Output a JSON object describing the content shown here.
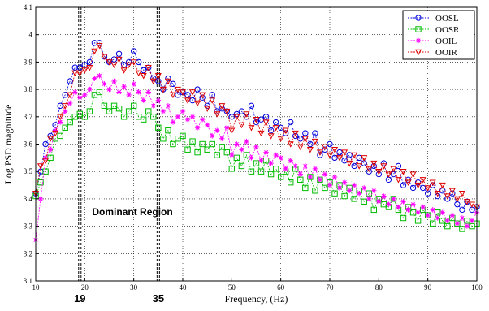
{
  "chart_data": {
    "type": "line",
    "title": "",
    "xlabel": "Frequency, (Hz)",
    "ylabel": "Log PSD magnitude",
    "xlim": [
      10,
      100
    ],
    "ylim": [
      3.1,
      4.1
    ],
    "xticks": [
      10,
      20,
      30,
      40,
      50,
      60,
      70,
      80,
      90,
      100
    ],
    "yticks": [
      3.1,
      3.2,
      3.3,
      3.4,
      3.5,
      3.6,
      3.7,
      3.8,
      3.9,
      4.0,
      4.1
    ],
    "xtick_labels": [
      "10",
      "20",
      "30",
      "40",
      "50",
      "60",
      "70",
      "80",
      "90",
      "100"
    ],
    "ytick_labels": [
      "3.1",
      "3.2",
      "3.3",
      "3.4",
      "3.5",
      "3.6",
      "3.7",
      "3.8",
      "3.9",
      "4",
      "4.1"
    ],
    "grid": true,
    "legend_position": "top-right",
    "x": [
      10,
      11,
      12,
      13,
      14,
      15,
      16,
      17,
      18,
      19,
      20,
      21,
      22,
      23,
      24,
      25,
      26,
      27,
      28,
      29,
      30,
      31,
      32,
      33,
      34,
      35,
      36,
      37,
      38,
      39,
      40,
      41,
      42,
      43,
      44,
      45,
      46,
      47,
      48,
      49,
      50,
      51,
      52,
      53,
      54,
      55,
      56,
      57,
      58,
      59,
      60,
      61,
      62,
      63,
      64,
      65,
      66,
      67,
      68,
      69,
      70,
      71,
      72,
      73,
      74,
      75,
      76,
      77,
      78,
      79,
      80,
      81,
      82,
      83,
      84,
      85,
      86,
      87,
      88,
      89,
      90,
      91,
      92,
      93,
      94,
      95,
      96,
      97,
      98,
      99,
      100
    ],
    "series": [
      {
        "name": "OOSL",
        "color": "#0000dd",
        "marker": "circle",
        "values": [
          3.42,
          3.5,
          3.6,
          3.63,
          3.67,
          3.74,
          3.78,
          3.83,
          3.88,
          3.88,
          3.89,
          3.9,
          3.97,
          3.97,
          3.92,
          3.9,
          3.91,
          3.93,
          3.89,
          3.9,
          3.94,
          3.9,
          3.87,
          3.88,
          3.84,
          3.83,
          3.8,
          3.84,
          3.82,
          3.78,
          3.79,
          3.78,
          3.76,
          3.8,
          3.77,
          3.74,
          3.78,
          3.72,
          3.73,
          3.72,
          3.7,
          3.71,
          3.72,
          3.7,
          3.74,
          3.68,
          3.69,
          3.7,
          3.65,
          3.68,
          3.66,
          3.64,
          3.68,
          3.63,
          3.62,
          3.64,
          3.6,
          3.64,
          3.56,
          3.58,
          3.6,
          3.55,
          3.57,
          3.54,
          3.56,
          3.52,
          3.55,
          3.53,
          3.5,
          3.52,
          3.49,
          3.53,
          3.47,
          3.49,
          3.52,
          3.45,
          3.47,
          3.44,
          3.46,
          3.44,
          3.42,
          3.45,
          3.41,
          3.43,
          3.4,
          3.42,
          3.38,
          3.36,
          3.39,
          3.36,
          3.37
        ]
      },
      {
        "name": "OOSR",
        "color": "#00bb00",
        "marker": "square",
        "values": [
          3.41,
          3.46,
          3.5,
          3.55,
          3.62,
          3.63,
          3.66,
          3.68,
          3.7,
          3.71,
          3.7,
          3.72,
          3.78,
          3.79,
          3.74,
          3.72,
          3.74,
          3.73,
          3.7,
          3.72,
          3.74,
          3.7,
          3.69,
          3.72,
          3.7,
          3.66,
          3.62,
          3.65,
          3.6,
          3.62,
          3.63,
          3.58,
          3.61,
          3.57,
          3.6,
          3.58,
          3.6,
          3.56,
          3.59,
          3.57,
          3.51,
          3.55,
          3.52,
          3.56,
          3.5,
          3.53,
          3.5,
          3.54,
          3.49,
          3.51,
          3.48,
          3.5,
          3.46,
          3.51,
          3.47,
          3.44,
          3.48,
          3.43,
          3.47,
          3.44,
          3.46,
          3.42,
          3.45,
          3.41,
          3.44,
          3.4,
          3.43,
          3.39,
          3.42,
          3.36,
          3.4,
          3.38,
          3.37,
          3.4,
          3.36,
          3.33,
          3.37,
          3.35,
          3.32,
          3.36,
          3.34,
          3.31,
          3.35,
          3.32,
          3.3,
          3.33,
          3.31,
          3.29,
          3.32,
          3.3,
          3.31
        ]
      },
      {
        "name": "OOIL",
        "color": "#ff00ff",
        "marker": "star",
        "values": [
          3.25,
          3.4,
          3.55,
          3.58,
          3.65,
          3.68,
          3.72,
          3.75,
          3.79,
          3.77,
          3.78,
          3.8,
          3.84,
          3.85,
          3.82,
          3.8,
          3.83,
          3.79,
          3.81,
          3.78,
          3.82,
          3.79,
          3.76,
          3.79,
          3.74,
          3.76,
          3.72,
          3.74,
          3.68,
          3.7,
          3.72,
          3.69,
          3.7,
          3.66,
          3.69,
          3.67,
          3.63,
          3.65,
          3.62,
          3.66,
          3.56,
          3.6,
          3.58,
          3.61,
          3.55,
          3.59,
          3.54,
          3.57,
          3.53,
          3.56,
          3.55,
          3.51,
          3.54,
          3.52,
          3.49,
          3.52,
          3.48,
          3.51,
          3.47,
          3.49,
          3.45,
          3.48,
          3.44,
          3.46,
          3.43,
          3.45,
          3.42,
          3.44,
          3.4,
          3.43,
          3.39,
          3.41,
          3.38,
          3.4,
          3.37,
          3.39,
          3.36,
          3.38,
          3.35,
          3.37,
          3.34,
          3.36,
          3.33,
          3.35,
          3.32,
          3.34,
          3.31,
          3.33,
          3.3,
          3.32,
          3.35
        ]
      },
      {
        "name": "OOIR",
        "color": "#dd0000",
        "marker": "triangle-down",
        "values": [
          3.42,
          3.52,
          3.54,
          3.62,
          3.64,
          3.7,
          3.74,
          3.78,
          3.86,
          3.86,
          3.87,
          3.88,
          3.94,
          3.96,
          3.92,
          3.9,
          3.89,
          3.91,
          3.87,
          3.89,
          3.9,
          3.86,
          3.85,
          3.88,
          3.83,
          3.85,
          3.8,
          3.83,
          3.78,
          3.8,
          3.79,
          3.76,
          3.79,
          3.75,
          3.78,
          3.73,
          3.76,
          3.71,
          3.74,
          3.72,
          3.65,
          3.7,
          3.67,
          3.71,
          3.66,
          3.69,
          3.64,
          3.68,
          3.63,
          3.66,
          3.62,
          3.65,
          3.6,
          3.64,
          3.59,
          3.62,
          3.58,
          3.61,
          3.57,
          3.59,
          3.56,
          3.58,
          3.55,
          3.57,
          3.53,
          3.56,
          3.52,
          3.55,
          3.51,
          3.53,
          3.5,
          3.52,
          3.49,
          3.51,
          3.47,
          3.5,
          3.46,
          3.49,
          3.45,
          3.47,
          3.44,
          3.46,
          3.42,
          3.45,
          3.41,
          3.43,
          3.4,
          3.42,
          3.39,
          3.38,
          3.37
        ]
      }
    ],
    "vertical_markers": [
      {
        "x": 19,
        "label": "19"
      },
      {
        "x": 35,
        "label": "35"
      }
    ],
    "annotations": [
      {
        "text": "Dominant Region",
        "x": 21.5,
        "y": 3.34
      }
    ]
  }
}
